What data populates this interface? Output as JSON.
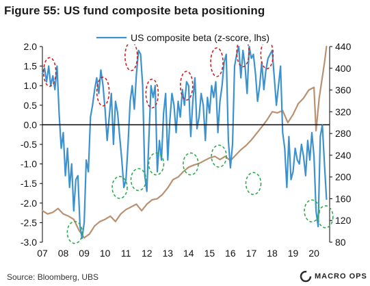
{
  "figure": {
    "title": "Figure 55: US fund composite beta positioning",
    "source": "Source:  Bloomberg, UBS",
    "brand": "MACRO OPS"
  },
  "colors": {
    "beta_line": "#3b92cf",
    "index_line": "#b99070",
    "peak_marker": "#cc1f1f",
    "trough_marker": "#2eab4c",
    "axis": "#000000",
    "brand_mark": "#2b2b2b"
  },
  "chart_data": {
    "type": "line",
    "title": "",
    "legend": {
      "position": "top-center",
      "entries": [
        "US composite beta (z-score, lhs)"
      ]
    },
    "grid": false,
    "x_axis": {
      "range": [
        2007.0,
        2020.75
      ],
      "tick_labels": [
        "07",
        "08",
        "09",
        "10",
        "11",
        "12",
        "13",
        "14",
        "15",
        "16",
        "17",
        "18",
        "19",
        "20"
      ],
      "tick_values": [
        2007,
        2008,
        2009,
        2010,
        2011,
        2012,
        2013,
        2014,
        2015,
        2016,
        2017,
        2018,
        2019,
        2020
      ]
    },
    "y_left": {
      "range": [
        -3.0,
        2.0
      ],
      "tick_labels": [
        "2.0",
        "1.5",
        "1.0",
        "0.5",
        "0.0",
        "-0.5",
        "-1.0",
        "-1.5",
        "-2.0",
        "-2.5",
        "-3.0"
      ],
      "tick_values": [
        2.0,
        1.5,
        1.0,
        0.5,
        0.0,
        -0.5,
        -1.0,
        -1.5,
        -2.0,
        -2.5,
        -3.0
      ]
    },
    "y_right": {
      "range": [
        80,
        440
      ],
      "tick_labels": [
        "440",
        "400",
        "360",
        "320",
        "280",
        "240",
        "200",
        "160",
        "120",
        "80"
      ],
      "tick_values": [
        440,
        400,
        360,
        320,
        280,
        240,
        200,
        160,
        120,
        80
      ]
    },
    "reference_line": {
      "axis": "left",
      "value": 0.0
    },
    "series": [
      {
        "name": "US composite beta (z-score, lhs)",
        "axis": "left",
        "x": [
          2007.0,
          2007.1,
          2007.2,
          2007.3,
          2007.4,
          2007.5,
          2007.6,
          2007.7,
          2007.8,
          2007.9,
          2008.0,
          2008.1,
          2008.2,
          2008.3,
          2008.4,
          2008.5,
          2008.6,
          2008.7,
          2008.8,
          2008.9,
          2009.0,
          2009.1,
          2009.2,
          2009.3,
          2009.4,
          2009.5,
          2009.6,
          2009.7,
          2009.8,
          2009.9,
          2010.0,
          2010.1,
          2010.2,
          2010.3,
          2010.4,
          2010.5,
          2010.6,
          2010.7,
          2010.8,
          2010.9,
          2011.0,
          2011.1,
          2011.2,
          2011.3,
          2011.4,
          2011.5,
          2011.6,
          2011.7,
          2011.8,
          2011.9,
          2012.0,
          2012.1,
          2012.2,
          2012.3,
          2012.4,
          2012.5,
          2012.6,
          2012.7,
          2012.8,
          2012.9,
          2013.0,
          2013.1,
          2013.2,
          2013.3,
          2013.4,
          2013.5,
          2013.6,
          2013.7,
          2013.8,
          2013.9,
          2014.0,
          2014.1,
          2014.2,
          2014.3,
          2014.4,
          2014.5,
          2014.6,
          2014.7,
          2014.8,
          2014.9,
          2015.0,
          2015.1,
          2015.2,
          2015.3,
          2015.4,
          2015.5,
          2015.6,
          2015.7,
          2015.8,
          2015.9,
          2016.0,
          2016.1,
          2016.2,
          2016.3,
          2016.4,
          2016.5,
          2016.6,
          2016.7,
          2016.8,
          2016.9,
          2017.0,
          2017.1,
          2017.2,
          2017.3,
          2017.4,
          2017.5,
          2017.6,
          2017.7,
          2017.8,
          2017.9,
          2018.0,
          2018.1,
          2018.2,
          2018.3,
          2018.4,
          2018.5,
          2018.6,
          2018.7,
          2018.8,
          2018.9,
          2019.0,
          2019.1,
          2019.2,
          2019.3,
          2019.4,
          2019.5,
          2019.6,
          2019.7,
          2019.8,
          2019.9,
          2020.0,
          2020.1,
          2020.2,
          2020.3,
          2020.4,
          2020.5,
          2020.6
        ],
        "values": [
          1.3,
          1.45,
          1.1,
          1.5,
          1.0,
          1.25,
          0.9,
          1.5,
          0.3,
          -0.6,
          -0.2,
          -1.3,
          -0.6,
          -1.6,
          -1.0,
          -2.2,
          -1.4,
          -1.3,
          -2.6,
          -2.9,
          -2.5,
          -0.9,
          -1.2,
          0.2,
          0.5,
          0.9,
          1.2,
          0.8,
          1.4,
          1.0,
          0.4,
          -0.4,
          0.2,
          0.8,
          -0.5,
          0.6,
          0.3,
          -0.3,
          -0.9,
          -1.6,
          -1.4,
          -0.5,
          0.6,
          1.0,
          0.4,
          1.3,
          1.9,
          1.8,
          1.0,
          -1.3,
          -1.7,
          -0.3,
          1.0,
          0.7,
          1.0,
          -1.2,
          -0.4,
          -0.9,
          0.3,
          0.8,
          -0.9,
          0.1,
          0.8,
          0.5,
          -0.2,
          0.6,
          0.2,
          0.9,
          0.5,
          1.1,
          1.0,
          -0.3,
          0.6,
          1.2,
          -0.1,
          0.2,
          0.8,
          0.5,
          -0.4,
          0.7,
          0.3,
          1.0,
          0.7,
          1.1,
          -0.2,
          0.6,
          1.0,
          1.6,
          1.8,
          -0.4,
          -1.1,
          -0.5,
          1.5,
          1.8,
          2.0,
          1.2,
          1.9,
          1.5,
          0.8,
          2.0,
          1.7,
          1.8,
          1.3,
          0.6,
          1.0,
          1.6,
          0.9,
          1.4,
          1.7,
          1.8,
          1.9,
          1.2,
          0.5,
          1.0,
          1.5,
          -0.2,
          -0.6,
          -1.6,
          -0.3,
          -1.4,
          -1.2,
          -0.6,
          -0.9,
          -1.0,
          -0.5,
          -0.8,
          -1.3,
          -0.4,
          -0.9,
          -0.2,
          -0.8,
          -2.2,
          -2.6,
          -0.3,
          0.0,
          -1.0,
          -1.9
        ]
      },
      {
        "name": "",
        "axis": "right",
        "x": [
          2007.0,
          2007.25,
          2007.5,
          2007.75,
          2008.0,
          2008.25,
          2008.5,
          2008.75,
          2009.0,
          2009.25,
          2009.5,
          2009.75,
          2010.0,
          2010.25,
          2010.5,
          2010.75,
          2011.0,
          2011.25,
          2011.5,
          2011.75,
          2012.0,
          2012.25,
          2012.5,
          2012.75,
          2013.0,
          2013.25,
          2013.5,
          2013.75,
          2014.0,
          2014.25,
          2014.5,
          2014.75,
          2015.0,
          2015.25,
          2015.5,
          2015.75,
          2016.0,
          2016.25,
          2016.5,
          2016.75,
          2017.0,
          2017.25,
          2017.5,
          2017.75,
          2018.0,
          2018.25,
          2018.5,
          2018.75,
          2019.0,
          2019.25,
          2019.5,
          2019.75,
          2020.0,
          2020.1,
          2020.25,
          2020.5,
          2020.6
        ],
        "values": [
          138,
          132,
          135,
          142,
          132,
          128,
          122,
          102,
          88,
          95,
          110,
          118,
          122,
          128,
          118,
          132,
          140,
          145,
          150,
          138,
          150,
          158,
          160,
          168,
          180,
          195,
          200,
          210,
          218,
          222,
          225,
          230,
          235,
          238,
          232,
          238,
          230,
          240,
          250,
          258,
          268,
          280,
          292,
          305,
          320,
          318,
          322,
          300,
          315,
          335,
          345,
          360,
          365,
          285,
          345,
          410,
          440
        ]
      }
    ],
    "annotations": [
      {
        "type": "peak-circle",
        "x": 2007.35,
        "y": 1.35
      },
      {
        "type": "peak-circle",
        "x": 2009.9,
        "y": 0.85
      },
      {
        "type": "peak-circle",
        "x": 2011.25,
        "y": 1.75
      },
      {
        "type": "peak-circle",
        "x": 2012.25,
        "y": 0.8
      },
      {
        "type": "peak-circle",
        "x": 2013.9,
        "y": 1.0
      },
      {
        "type": "peak-circle",
        "x": 2015.35,
        "y": 1.6
      },
      {
        "type": "peak-circle",
        "x": 2016.6,
        "y": 1.85
      },
      {
        "type": "peak-circle",
        "x": 2017.75,
        "y": 1.8
      },
      {
        "type": "trough-circle",
        "x": 2008.55,
        "y": -2.75
      },
      {
        "type": "trough-circle",
        "x": 2010.7,
        "y": -1.6
      },
      {
        "type": "trough-circle",
        "x": 2011.6,
        "y": -1.4
      },
      {
        "type": "trough-circle",
        "x": 2012.45,
        "y": -1.0
      },
      {
        "type": "trough-circle",
        "x": 2014.1,
        "y": -1.0
      },
      {
        "type": "trough-circle",
        "x": 2015.45,
        "y": -0.8
      },
      {
        "type": "trough-circle",
        "x": 2017.1,
        "y": -1.5
      },
      {
        "type": "trough-circle",
        "x": 2019.9,
        "y": -2.2
      },
      {
        "type": "trough-circle",
        "x": 2020.55,
        "y": -2.35
      }
    ]
  }
}
